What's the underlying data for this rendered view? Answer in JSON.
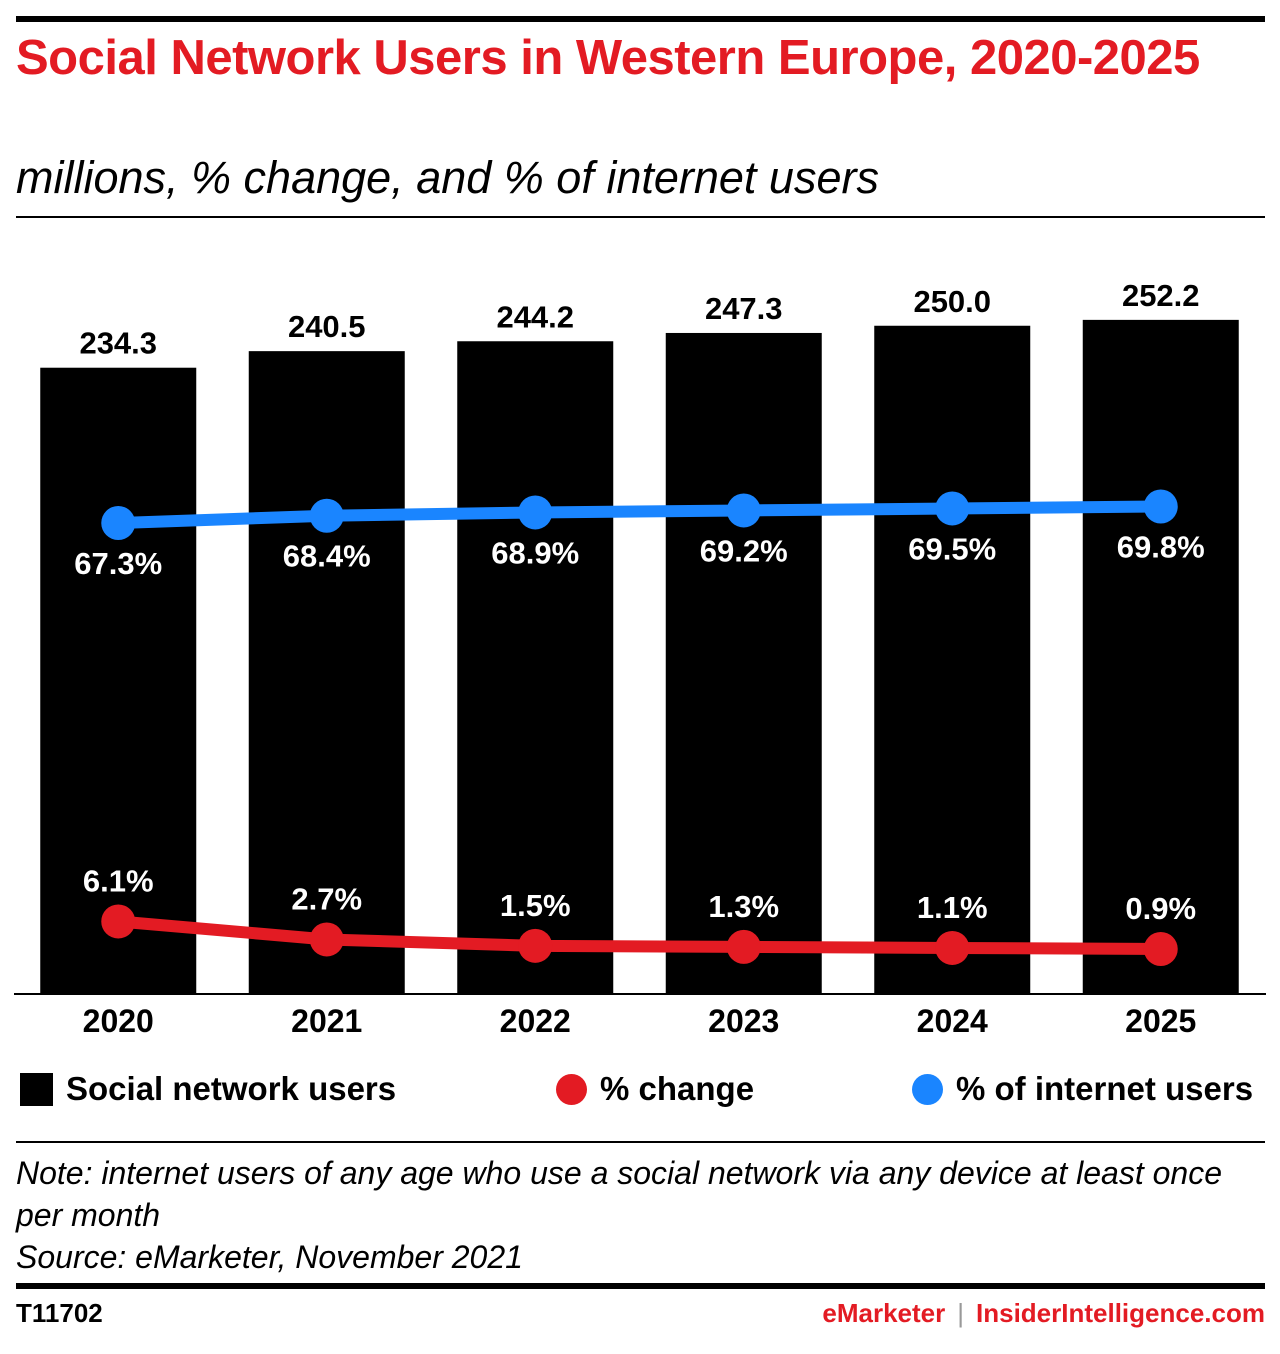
{
  "header": {
    "title": "Social Network Users in Western Europe, 2020-2025",
    "subtitle": "millions, % change, and % of internet users"
  },
  "chart_data": {
    "type": "bar",
    "categories": [
      "2020",
      "2021",
      "2022",
      "2023",
      "2024",
      "2025"
    ],
    "series": [
      {
        "name": "Social network users",
        "type": "bar",
        "values": [
          234.3,
          240.5,
          244.2,
          247.3,
          250.0,
          252.2
        ],
        "labels": [
          "234.3",
          "240.5",
          "244.2",
          "247.3",
          "250.0",
          "252.2"
        ]
      },
      {
        "name": "% change",
        "type": "line",
        "values": [
          6.1,
          2.7,
          1.5,
          1.3,
          1.1,
          0.9
        ],
        "labels": [
          "6.1%",
          "2.7%",
          "1.5%",
          "1.3%",
          "1.1%",
          "0.9%"
        ]
      },
      {
        "name": "% of internet users",
        "type": "line",
        "values": [
          67.3,
          68.4,
          68.9,
          69.2,
          69.5,
          69.8
        ],
        "labels": [
          "67.3%",
          "68.4%",
          "68.9%",
          "69.2%",
          "69.5%",
          "69.8%"
        ]
      }
    ],
    "colors": {
      "bars": "#000000",
      "change": "#e31b23",
      "internet": "#1a85ff"
    },
    "grid": false,
    "legend_position": "bottom"
  },
  "legend": {
    "bars": "Social network users",
    "change": "% change",
    "internet": "% of internet users"
  },
  "notes": {
    "note": "Note: internet users of any age who use a social network via any device at least once per month",
    "source": "Source: eMarketer, November 2021"
  },
  "footer": {
    "chart_id": "T11702",
    "brand": "eMarketer",
    "separator": "|",
    "site": "InsiderIntelligence.com"
  }
}
